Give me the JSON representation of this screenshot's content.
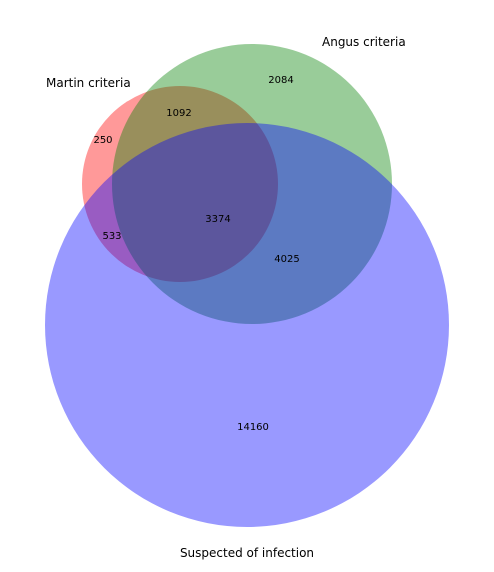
{
  "sets": {
    "martin": {
      "label": "Martin criteria",
      "color": "#ff0000"
    },
    "angus": {
      "label": "Angus criteria",
      "color": "#008000"
    },
    "infection": {
      "label": "Suspected of infection",
      "color": "#0000ff"
    }
  },
  "region_counts": {
    "martin_only": "250",
    "angus_only": "2084",
    "martin_angus": "1092",
    "martin_infection": "533",
    "angus_infection": "4025",
    "all_three": "3374",
    "infection_only": "14160"
  },
  "style": {
    "circle_opacity": 0.4
  }
}
